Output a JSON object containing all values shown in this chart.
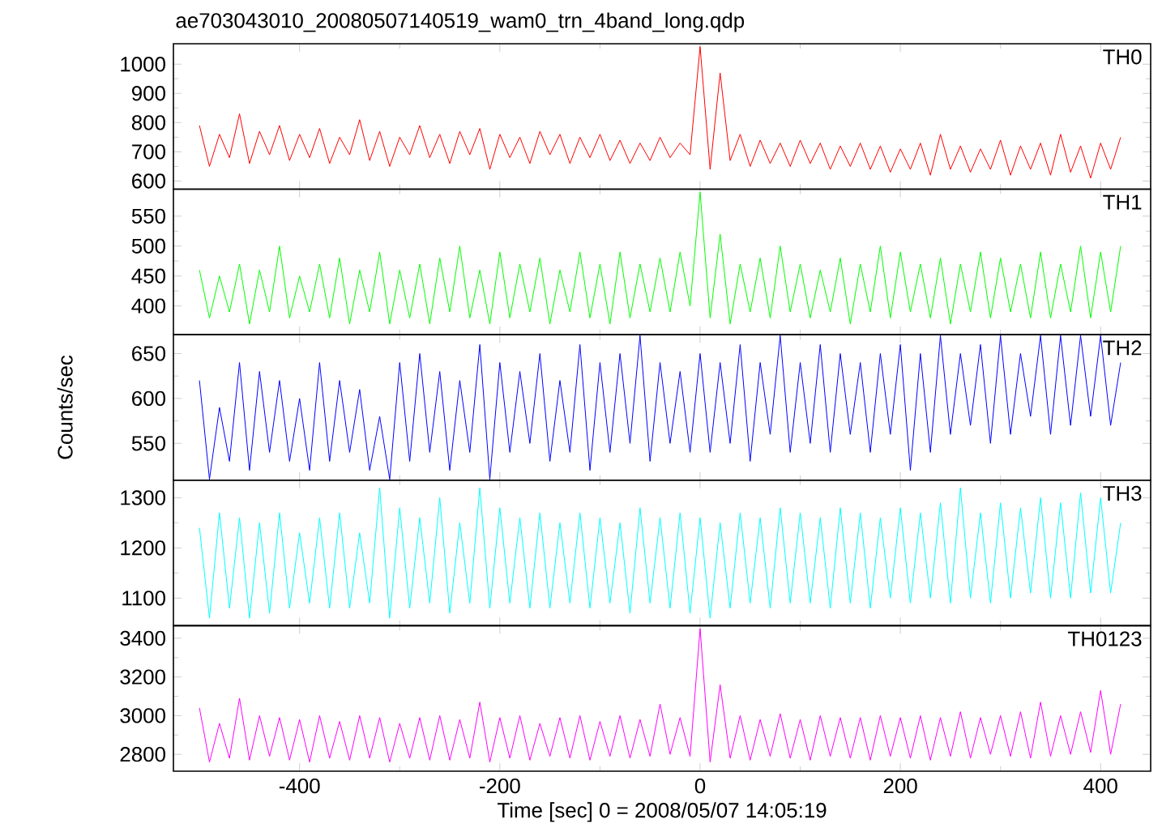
{
  "chart_data": [
    {
      "type": "line",
      "title": "ae703043010_20080507140519_wam0_trn_4band_long.qdp",
      "annotations": [
        "TH0"
      ],
      "tick_labels": "y",
      "color": "#ff0000",
      "xlim": [
        -526,
        450
      ],
      "xticks": [
        -400,
        -200,
        0,
        200,
        400
      ],
      "ylim": [
        572,
        1070
      ],
      "yticks": [
        600,
        700,
        800,
        900,
        1000
      ],
      "x": [
        -500,
        -490,
        -480,
        -470,
        -460,
        -450,
        -440,
        -430,
        -420,
        -410,
        -400,
        -390,
        -380,
        -370,
        -360,
        -350,
        -340,
        -330,
        -320,
        -310,
        -300,
        -290,
        -280,
        -270,
        -260,
        -250,
        -240,
        -230,
        -220,
        -210,
        -200,
        -190,
        -180,
        -170,
        -160,
        -150,
        -140,
        -130,
        -120,
        -110,
        -100,
        -90,
        -80,
        -70,
        -60,
        -50,
        -40,
        -30,
        -20,
        -10,
        0,
        10,
        20,
        30,
        40,
        50,
        60,
        70,
        80,
        90,
        100,
        110,
        120,
        130,
        140,
        150,
        160,
        170,
        180,
        190,
        200,
        210,
        220,
        230,
        240,
        250,
        260,
        270,
        280,
        290,
        300,
        310,
        320,
        330,
        340,
        350,
        360,
        370,
        380,
        390,
        400,
        410,
        420
      ],
      "values": [
        790,
        650,
        760,
        680,
        830,
        660,
        770,
        690,
        790,
        670,
        760,
        680,
        780,
        660,
        750,
        690,
        810,
        670,
        770,
        650,
        750,
        690,
        790,
        680,
        760,
        660,
        770,
        690,
        780,
        640,
        760,
        680,
        750,
        660,
        770,
        690,
        760,
        660,
        750,
        680,
        760,
        670,
        740,
        660,
        730,
        670,
        750,
        680,
        730,
        690,
        1060,
        640,
        970,
        670,
        760,
        650,
        740,
        660,
        730,
        650,
        740,
        660,
        730,
        640,
        720,
        650,
        730,
        640,
        720,
        630,
        710,
        640,
        730,
        620,
        760,
        640,
        720,
        630,
        710,
        640,
        740,
        620,
        720,
        640,
        730,
        620,
        760,
        630,
        720,
        610,
        730,
        640,
        750
      ]
    },
    {
      "type": "line",
      "annotations": [
        "TH1"
      ],
      "tick_labels": "y",
      "color": "#00ff00",
      "xlim": [
        -526,
        450
      ],
      "xticks": [
        -400,
        -200,
        0,
        200,
        400
      ],
      "ylim": [
        352,
        595
      ],
      "yticks": [
        400,
        450,
        500,
        550
      ],
      "x": [
        -500,
        -490,
        -480,
        -470,
        -460,
        -450,
        -440,
        -430,
        -420,
        -410,
        -400,
        -390,
        -380,
        -370,
        -360,
        -350,
        -340,
        -330,
        -320,
        -310,
        -300,
        -290,
        -280,
        -270,
        -260,
        -250,
        -240,
        -230,
        -220,
        -210,
        -200,
        -190,
        -180,
        -170,
        -160,
        -150,
        -140,
        -130,
        -120,
        -110,
        -100,
        -90,
        -80,
        -70,
        -60,
        -50,
        -40,
        -30,
        -20,
        -10,
        0,
        10,
        20,
        30,
        40,
        50,
        60,
        70,
        80,
        90,
        100,
        110,
        120,
        130,
        140,
        150,
        160,
        170,
        180,
        190,
        200,
        210,
        220,
        230,
        240,
        250,
        260,
        270,
        280,
        290,
        300,
        310,
        320,
        330,
        340,
        350,
        360,
        370,
        380,
        390,
        400,
        410,
        420
      ],
      "values": [
        460,
        380,
        450,
        390,
        470,
        370,
        460,
        390,
        500,
        380,
        450,
        390,
        470,
        380,
        480,
        370,
        460,
        390,
        490,
        370,
        460,
        380,
        470,
        370,
        480,
        390,
        500,
        380,
        460,
        370,
        490,
        380,
        470,
        390,
        480,
        370,
        460,
        390,
        490,
        380,
        470,
        370,
        490,
        380,
        470,
        390,
        480,
        390,
        490,
        400,
        590,
        380,
        520,
        370,
        470,
        390,
        480,
        380,
        500,
        390,
        470,
        380,
        460,
        390,
        480,
        370,
        470,
        390,
        500,
        380,
        490,
        390,
        470,
        380,
        480,
        370,
        470,
        390,
        490,
        380,
        480,
        390,
        470,
        380,
        490,
        380,
        470,
        390,
        500,
        380,
        490,
        390,
        500
      ]
    },
    {
      "type": "line",
      "annotations": [
        "TH2"
      ],
      "ylabel": "Counts/sec",
      "tick_labels": "y",
      "color": "#0000ff",
      "xlim": [
        -526,
        450
      ],
      "xticks": [
        -400,
        -200,
        0,
        200,
        400
      ],
      "ylim": [
        509,
        671
      ],
      "yticks": [
        550,
        600,
        650
      ],
      "x": [
        -500,
        -490,
        -480,
        -470,
        -460,
        -450,
        -440,
        -430,
        -420,
        -410,
        -400,
        -390,
        -380,
        -370,
        -360,
        -350,
        -340,
        -330,
        -320,
        -310,
        -300,
        -290,
        -280,
        -270,
        -260,
        -250,
        -240,
        -230,
        -220,
        -210,
        -200,
        -190,
        -180,
        -170,
        -160,
        -150,
        -140,
        -130,
        -120,
        -110,
        -100,
        -90,
        -80,
        -70,
        -60,
        -50,
        -40,
        -30,
        -20,
        -10,
        0,
        10,
        20,
        30,
        40,
        50,
        60,
        70,
        80,
        90,
        100,
        110,
        120,
        130,
        140,
        150,
        160,
        170,
        180,
        190,
        200,
        210,
        220,
        230,
        240,
        250,
        260,
        270,
        280,
        290,
        300,
        310,
        320,
        330,
        340,
        350,
        360,
        370,
        380,
        390,
        400,
        410,
        420
      ],
      "values": [
        620,
        510,
        590,
        530,
        640,
        520,
        630,
        540,
        620,
        530,
        600,
        520,
        640,
        530,
        620,
        540,
        610,
        520,
        580,
        510,
        640,
        530,
        650,
        540,
        630,
        520,
        620,
        540,
        660,
        510,
        640,
        540,
        630,
        550,
        650,
        530,
        620,
        540,
        660,
        520,
        640,
        540,
        650,
        550,
        670,
        530,
        640,
        550,
        630,
        540,
        650,
        540,
        640,
        550,
        660,
        530,
        640,
        560,
        670,
        540,
        640,
        550,
        660,
        540,
        650,
        560,
        640,
        540,
        650,
        560,
        660,
        520,
        650,
        540,
        670,
        560,
        650,
        570,
        660,
        550,
        670,
        560,
        650,
        580,
        670,
        560,
        670,
        570,
        670,
        580,
        670,
        570,
        640
      ]
    },
    {
      "type": "line",
      "annotations": [
        "TH3"
      ],
      "tick_labels": "y",
      "color": "#00ffff",
      "xlim": [
        -526,
        450
      ],
      "xticks": [
        -400,
        -200,
        0,
        200,
        400
      ],
      "ylim": [
        1045,
        1335
      ],
      "yticks": [
        1100,
        1200,
        1300
      ],
      "x": [
        -500,
        -490,
        -480,
        -470,
        -460,
        -450,
        -440,
        -430,
        -420,
        -410,
        -400,
        -390,
        -380,
        -370,
        -360,
        -350,
        -340,
        -330,
        -320,
        -310,
        -300,
        -290,
        -280,
        -270,
        -260,
        -250,
        -240,
        -230,
        -220,
        -210,
        -200,
        -190,
        -180,
        -170,
        -160,
        -150,
        -140,
        -130,
        -120,
        -110,
        -100,
        -90,
        -80,
        -70,
        -60,
        -50,
        -40,
        -30,
        -20,
        -10,
        0,
        10,
        20,
        30,
        40,
        50,
        60,
        70,
        80,
        90,
        100,
        110,
        120,
        130,
        140,
        150,
        160,
        170,
        180,
        190,
        200,
        210,
        220,
        230,
        240,
        250,
        260,
        270,
        280,
        290,
        300,
        310,
        320,
        330,
        340,
        350,
        360,
        370,
        380,
        390,
        400,
        410,
        420
      ],
      "values": [
        1240,
        1060,
        1270,
        1080,
        1260,
        1060,
        1250,
        1070,
        1270,
        1080,
        1230,
        1090,
        1260,
        1080,
        1270,
        1080,
        1230,
        1090,
        1320,
        1060,
        1280,
        1080,
        1260,
        1090,
        1300,
        1070,
        1250,
        1090,
        1320,
        1080,
        1280,
        1090,
        1260,
        1080,
        1270,
        1080,
        1250,
        1090,
        1270,
        1080,
        1260,
        1090,
        1250,
        1070,
        1280,
        1090,
        1260,
        1080,
        1270,
        1070,
        1260,
        1060,
        1250,
        1080,
        1270,
        1090,
        1260,
        1080,
        1280,
        1090,
        1270,
        1090,
        1260,
        1080,
        1280,
        1090,
        1270,
        1080,
        1260,
        1100,
        1280,
        1090,
        1270,
        1100,
        1290,
        1090,
        1320,
        1100,
        1270,
        1090,
        1290,
        1100,
        1280,
        1110,
        1300,
        1100,
        1290,
        1100,
        1310,
        1110,
        1300,
        1110,
        1250
      ]
    },
    {
      "type": "line",
      "annotations": [
        "TH0123"
      ],
      "xlabel": "Time [sec] 0 = 2008/05/07 14:05:19",
      "color": "#ff00ff",
      "xlim": [
        -526,
        450
      ],
      "xticks": [
        -400,
        -200,
        0,
        200,
        400
      ],
      "ylim": [
        2713,
        3465
      ],
      "yticks": [
        2800,
        3000,
        3200,
        3400
      ],
      "x": [
        -500,
        -490,
        -480,
        -470,
        -460,
        -450,
        -440,
        -430,
        -420,
        -410,
        -400,
        -390,
        -380,
        -370,
        -360,
        -350,
        -340,
        -330,
        -320,
        -310,
        -300,
        -290,
        -280,
        -270,
        -260,
        -250,
        -240,
        -230,
        -220,
        -210,
        -200,
        -190,
        -180,
        -170,
        -160,
        -150,
        -140,
        -130,
        -120,
        -110,
        -100,
        -90,
        -80,
        -70,
        -60,
        -50,
        -40,
        -30,
        -20,
        -10,
        0,
        10,
        20,
        30,
        40,
        50,
        60,
        70,
        80,
        90,
        100,
        110,
        120,
        130,
        140,
        150,
        160,
        170,
        180,
        190,
        200,
        210,
        220,
        230,
        240,
        250,
        260,
        270,
        280,
        290,
        300,
        310,
        320,
        330,
        340,
        350,
        360,
        370,
        380,
        390,
        400,
        410,
        420
      ],
      "values": [
        3040,
        2760,
        2960,
        2780,
        3090,
        2770,
        3000,
        2790,
        2990,
        2770,
        2980,
        2760,
        3000,
        2780,
        2970,
        2770,
        3000,
        2780,
        2990,
        2760,
        2960,
        2780,
        2990,
        2770,
        3000,
        2770,
        2980,
        2780,
        3070,
        2760,
        2990,
        2780,
        3000,
        2770,
        2960,
        2790,
        2990,
        2780,
        3000,
        2770,
        2970,
        2790,
        3000,
        2780,
        2980,
        2790,
        3060,
        2800,
        2990,
        2790,
        3450,
        2760,
        3160,
        2780,
        3000,
        2770,
        2980,
        2790,
        3010,
        2780,
        2980,
        2770,
        3000,
        2790,
        2990,
        2780,
        2990,
        2770,
        3000,
        2790,
        2990,
        2780,
        3000,
        2770,
        2990,
        2790,
        3020,
        2780,
        2990,
        2800,
        3000,
        2790,
        3020,
        2780,
        3070,
        2790,
        3000,
        2800,
        3020,
        2810,
        3130,
        2800,
        3060
      ]
    }
  ]
}
